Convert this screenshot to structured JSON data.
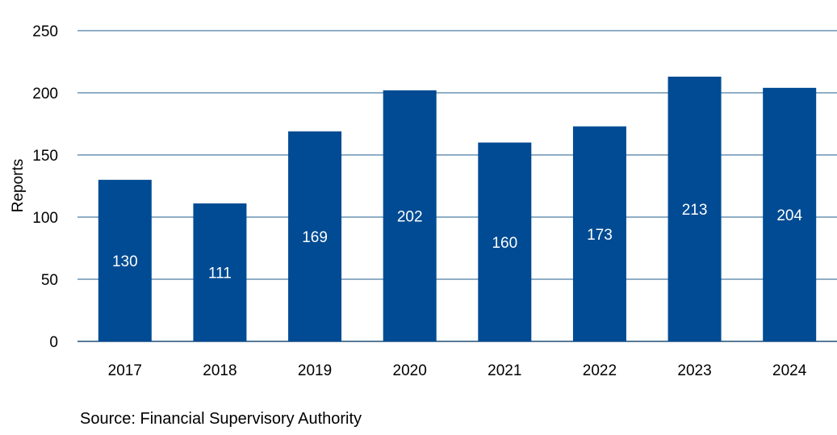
{
  "chart_data": {
    "type": "bar",
    "categories": [
      "2017",
      "2018",
      "2019",
      "2020",
      "2021",
      "2022",
      "2023",
      "2024"
    ],
    "values": [
      130,
      111,
      169,
      202,
      160,
      173,
      213,
      204
    ],
    "data_labels": [
      "130",
      "111",
      "169",
      "202",
      "160",
      "173",
      "213",
      "204"
    ],
    "title": "",
    "xlabel": "",
    "ylabel": "Reports",
    "ylim": [
      0,
      250
    ],
    "yticks": [
      0,
      50,
      100,
      150,
      200,
      250
    ],
    "ytick_labels": [
      "0",
      "50",
      "100",
      "150",
      "200",
      "250"
    ],
    "grid": true,
    "legend": "none",
    "colors": {
      "bar": "#004b93",
      "grid": "#1f5c8c",
      "axis": "#1f4e79"
    }
  },
  "source": "Source: Financial Supervisory Authority"
}
